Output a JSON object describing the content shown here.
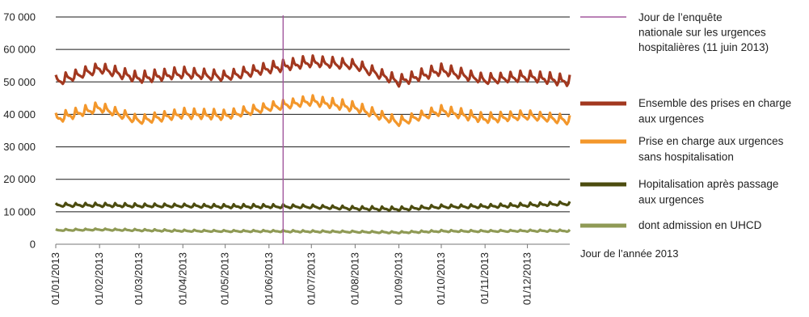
{
  "chart_data": {
    "type": "line",
    "x_start": "2013-01-01",
    "x_end": "2013-12-31",
    "y_ticks": [
      "0",
      "10 000",
      "20 000",
      "30 000",
      "40 000",
      "50 000",
      "60 000",
      "70 000"
    ],
    "ylim": [
      0,
      70000
    ],
    "grid": true,
    "x_ticks": [
      "01/01/2013",
      "01/02/2013",
      "01/03/2013",
      "01/04/2013",
      "01/05/2013",
      "01/06/2013",
      "01/07/2013",
      "01/08/2013",
      "01/09/2013",
      "01/10/2013",
      "01/11/2013",
      "01/12/2013"
    ],
    "x_tick_dates": [
      "2013-01-01",
      "2013-02-01",
      "2013-03-01",
      "2013-04-01",
      "2013-05-01",
      "2013-06-01",
      "2013-07-01",
      "2013-08-01",
      "2013-09-01",
      "2013-10-01",
      "2013-11-01",
      "2013-12-01"
    ],
    "x_axis_note": "Jour de l’année 2013",
    "vertical_marker": {
      "date": "2013-06-11",
      "label": "Jour de l’enquête nationale sur les urgences hospitalières (11 juin 2013)",
      "label_lines": [
        "Jour de l’enquête",
        "nationale sur les urgences",
        "hospitalières (11 juin 2013)"
      ],
      "color": "#a3589e"
    },
    "legend_placement": "right",
    "series": [
      {
        "name": "Ensemble des prises en charge aux urgences",
        "label_lines": [
          "Ensemble des prises en charge",
          "aux urgences"
        ],
        "color": "#a2381f",
        "monthly_dates": [
          "2013-01-01",
          "2013-02-01",
          "2013-03-01",
          "2013-04-01",
          "2013-05-01",
          "2013-06-01",
          "2013-07-01",
          "2013-08-01",
          "2013-09-01",
          "2013-10-01",
          "2013-11-01",
          "2013-12-01",
          "2013-12-31"
        ],
        "monthly_values": [
          50000,
          54000,
          51000,
          52500,
          51500,
          54000,
          56000,
          55000,
          50000,
          53500,
          50500,
          51500,
          50000
        ],
        "weekly_amplitude": 4200
      },
      {
        "name": "Prise en charge aux urgences sans hospitalisation",
        "label_lines": [
          "Prise en charge aux urgences",
          "sans hospitalisation"
        ],
        "color": "#f3972b",
        "monthly_dates": [
          "2013-01-01",
          "2013-02-01",
          "2013-03-01",
          "2013-04-01",
          "2013-05-01",
          "2013-06-01",
          "2013-07-01",
          "2013-08-01",
          "2013-09-01",
          "2013-10-01",
          "2013-11-01",
          "2013-12-01",
          "2013-12-31"
        ],
        "monthly_values": [
          38500,
          42000,
          38000,
          40000,
          39500,
          42000,
          44000,
          42000,
          37500,
          41000,
          38500,
          39500,
          38000
        ],
        "weekly_amplitude": 3700
      },
      {
        "name": "Hopitalisation après passage aux urgences",
        "label_lines": [
          "Hopitalisation après passage",
          "aux urgences"
        ],
        "color": "#4c4c0f",
        "monthly_dates": [
          "2013-01-01",
          "2013-02-01",
          "2013-03-01",
          "2013-04-01",
          "2013-05-01",
          "2013-06-01",
          "2013-07-01",
          "2013-08-01",
          "2013-09-01",
          "2013-10-01",
          "2013-11-01",
          "2013-12-01",
          "2013-12-31"
        ],
        "monthly_values": [
          12000,
          12000,
          11800,
          11800,
          11600,
          11600,
          11500,
          11000,
          10800,
          11500,
          11600,
          12000,
          12500
        ],
        "weekly_amplitude": 1400
      },
      {
        "name": "dont admission en UHCD",
        "label_lines": [
          "dont admission en UHCD"
        ],
        "color": "#8f9a55",
        "monthly_dates": [
          "2013-01-01",
          "2013-02-01",
          "2013-03-01",
          "2013-04-01",
          "2013-05-01",
          "2013-06-01",
          "2013-07-01",
          "2013-08-01",
          "2013-09-01",
          "2013-10-01",
          "2013-11-01",
          "2013-12-01",
          "2013-12-31"
        ],
        "monthly_values": [
          4300,
          4500,
          4300,
          4100,
          4000,
          4000,
          3900,
          3800,
          3600,
          4000,
          4000,
          4100,
          4100
        ],
        "weekly_amplitude": 700
      }
    ]
  }
}
